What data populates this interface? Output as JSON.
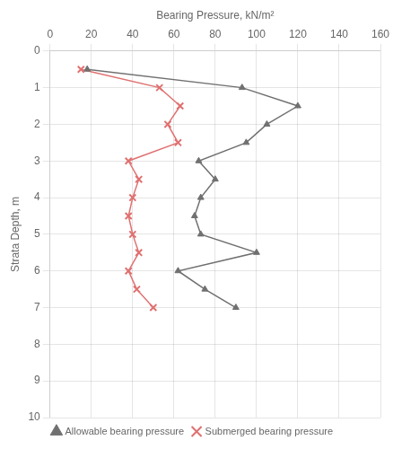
{
  "chart_data": {
    "type": "line",
    "xlabel": "Bearing Pressure, kN/m²",
    "ylabel": "Strata Depth, m",
    "xlim": [
      0,
      160
    ],
    "ylim": [
      10,
      0
    ],
    "xticks": [
      0,
      20,
      40,
      60,
      80,
      100,
      120,
      140,
      160
    ],
    "yticks": [
      0,
      1,
      2,
      3,
      4,
      5,
      6,
      7,
      8,
      9,
      10
    ],
    "grid": true,
    "legend": "bottom",
    "series": [
      {
        "name": "Allowable bearing pressure",
        "color": "#707070",
        "marker": "triangle",
        "x": [
          18,
          93,
          120,
          105,
          95,
          72,
          80,
          73,
          70,
          73,
          100,
          62,
          75,
          90
        ],
        "y": [
          0.5,
          1.0,
          1.5,
          2.0,
          2.5,
          3.0,
          3.5,
          4.0,
          4.5,
          5.0,
          5.5,
          6.0,
          6.5,
          7.0
        ]
      },
      {
        "name": "Submerged bearing pressure",
        "color": "#e07070",
        "marker": "x",
        "x": [
          15,
          53,
          63,
          57,
          62,
          38,
          43,
          40,
          38,
          40,
          43,
          38,
          42,
          50
        ],
        "y": [
          0.5,
          1.0,
          1.5,
          2.0,
          2.5,
          3.0,
          3.5,
          4.0,
          4.5,
          5.0,
          5.5,
          6.0,
          6.5,
          7.0
        ]
      }
    ]
  }
}
